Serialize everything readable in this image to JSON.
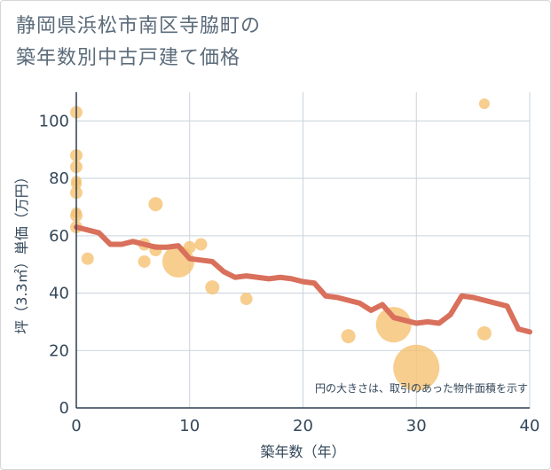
{
  "title_lines": [
    "静岡県浜松市南区寺脇町の",
    "築年数別中古戸建て価格"
  ],
  "chart_data": {
    "type": "scatter+line",
    "xlabel": "築年数（年）",
    "ylabel": "坪（3.3㎡）単価（万円）",
    "xlim": [
      0,
      40
    ],
    "ylim": [
      0,
      110
    ],
    "xticks": [
      0,
      10,
      20,
      30,
      40
    ],
    "yticks": [
      0,
      20,
      40,
      60,
      80,
      100
    ],
    "note": "円の大きさは、取引のあった物件面積を示す",
    "colors": {
      "bubble": "#f5c272",
      "line": "#d9705c",
      "grid": "#c9d3dc",
      "axis": "#2c3e50"
    },
    "bubbles": [
      {
        "x": 0,
        "y": 103,
        "r": 7
      },
      {
        "x": 0,
        "y": 88,
        "r": 7
      },
      {
        "x": 0,
        "y": 84,
        "r": 7
      },
      {
        "x": 0,
        "y": 79,
        "r": 6
      },
      {
        "x": 0,
        "y": 78,
        "r": 6
      },
      {
        "x": 0,
        "y": 75,
        "r": 7
      },
      {
        "x": 0,
        "y": 68,
        "r": 6
      },
      {
        "x": 0,
        "y": 67,
        "r": 7
      },
      {
        "x": 0,
        "y": 63,
        "r": 7
      },
      {
        "x": 1,
        "y": 52,
        "r": 7
      },
      {
        "x": 6,
        "y": 57,
        "r": 7
      },
      {
        "x": 6,
        "y": 51,
        "r": 7
      },
      {
        "x": 7,
        "y": 71,
        "r": 8
      },
      {
        "x": 7,
        "y": 55,
        "r": 7
      },
      {
        "x": 9,
        "y": 51,
        "r": 18
      },
      {
        "x": 10,
        "y": 56,
        "r": 7
      },
      {
        "x": 11,
        "y": 57,
        "r": 7
      },
      {
        "x": 12,
        "y": 42,
        "r": 8
      },
      {
        "x": 15,
        "y": 38,
        "r": 7
      },
      {
        "x": 24,
        "y": 25,
        "r": 8
      },
      {
        "x": 28,
        "y": 29,
        "r": 20
      },
      {
        "x": 30,
        "y": 14,
        "r": 26
      },
      {
        "x": 36,
        "y": 106,
        "r": 6
      },
      {
        "x": 36,
        "y": 26,
        "r": 8
      }
    ],
    "line": {
      "x": [
        0,
        2,
        3,
        4,
        5,
        6,
        7,
        8,
        9,
        10,
        11,
        12,
        13,
        14,
        15,
        16,
        17,
        18,
        19,
        20,
        21,
        22,
        23,
        24,
        25,
        26,
        27,
        28,
        29,
        30,
        31,
        32,
        33,
        34,
        35,
        36,
        37,
        38,
        39,
        40
      ],
      "y": [
        63,
        61,
        57,
        57,
        58,
        57,
        56,
        56,
        56.5,
        52,
        51.5,
        51,
        47.5,
        45.5,
        46,
        45.5,
        45,
        45.5,
        45,
        44,
        43.5,
        39,
        38.5,
        37.5,
        36.5,
        34,
        36,
        31.5,
        30.5,
        29.5,
        30,
        29.5,
        32.5,
        39,
        38.5,
        37.5,
        36.5,
        35.5,
        27.5,
        26.5
      ]
    }
  }
}
